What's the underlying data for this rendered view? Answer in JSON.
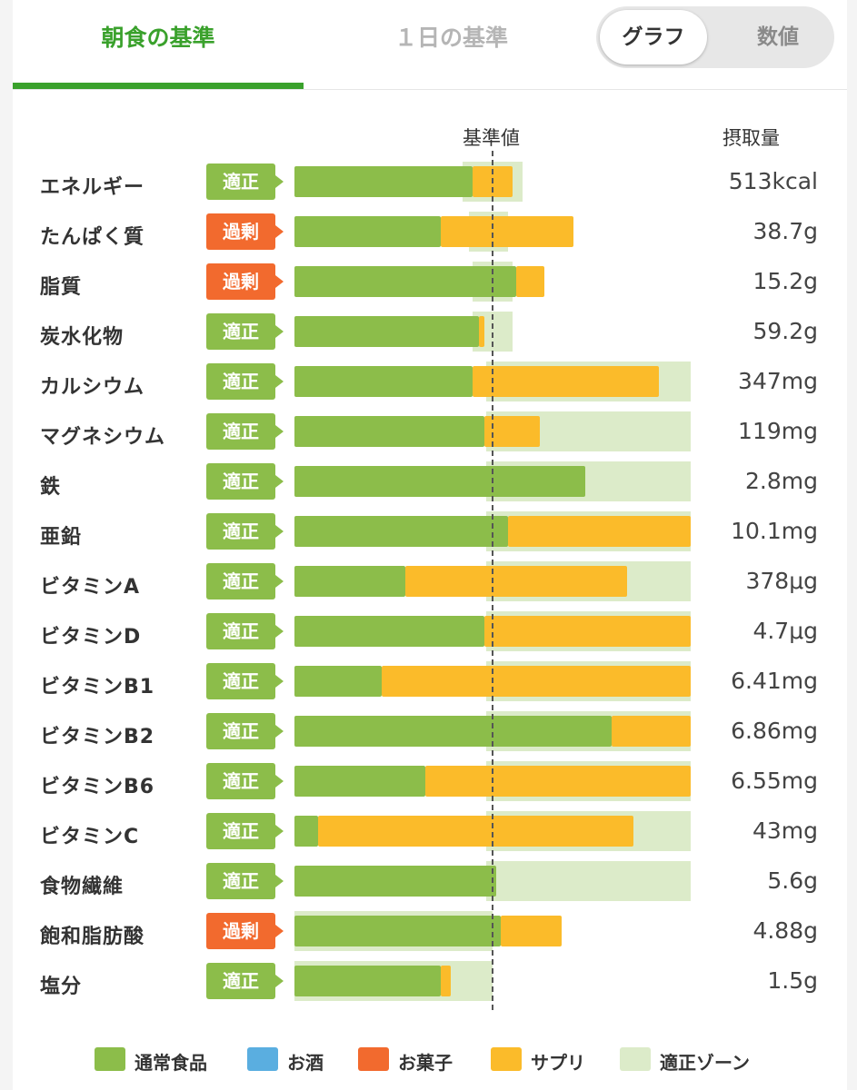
{
  "tabs": {
    "breakfast": "朝食の基準",
    "day": "１日の基準"
  },
  "toggle": {
    "graph": "グラフ",
    "numbers": "数値"
  },
  "headers": {
    "reference": "基準値",
    "intake": "摂取量"
  },
  "colors": {
    "food": "#8cbd4a",
    "alcohol": "#5aaee0",
    "snack": "#f26a2e",
    "supplement": "#fbbb2a",
    "zone": "#dcebc9",
    "ok": "#8cbd4a",
    "excess": "#f26a2e"
  },
  "chart_data": {
    "type": "bar",
    "reference_label": "基準値",
    "scale_note": "values as fraction of reference (1.0 = 基準値)",
    "rows": [
      {
        "name": "エネルギー",
        "status": "適正",
        "status_type": "ok",
        "value": "513kcal",
        "food": 0.9,
        "supplement": 0.2,
        "zone": [
          0.85,
          1.15
        ]
      },
      {
        "name": "たんぱく質",
        "status": "過剰",
        "status_type": "excess",
        "value": "38.7g",
        "food": 0.74,
        "supplement": 0.67,
        "zone": [
          0.88,
          1.08
        ]
      },
      {
        "name": "脂質",
        "status": "過剰",
        "status_type": "excess",
        "value": "15.2g",
        "food": 1.12,
        "supplement": 0.14,
        "zone": [
          0.9,
          1.1
        ]
      },
      {
        "name": "炭水化物",
        "status": "適正",
        "status_type": "ok",
        "value": "59.2g",
        "food": 0.93,
        "supplement": 0.03,
        "zone": [
          0.9,
          1.1
        ]
      },
      {
        "name": "カルシウム",
        "status": "適正",
        "status_type": "ok",
        "value": "347mg",
        "food": 0.9,
        "supplement": 0.94,
        "zone": [
          0.97,
          2.0
        ]
      },
      {
        "name": "マグネシウム",
        "status": "適正",
        "status_type": "ok",
        "value": "119mg",
        "food": 0.96,
        "supplement": 0.28,
        "zone": [
          0.97,
          2.0
        ]
      },
      {
        "name": "鉄",
        "status": "適正",
        "status_type": "ok",
        "value": "2.8mg",
        "food": 1.47,
        "supplement": 0.0,
        "zone": [
          0.97,
          2.0
        ]
      },
      {
        "name": "亜鉛",
        "status": "適正",
        "status_type": "ok",
        "value": "10.1mg",
        "food": 1.08,
        "supplement": 0.92,
        "zone": [
          0.97,
          2.0
        ]
      },
      {
        "name": "ビタミンA",
        "status": "適正",
        "status_type": "ok",
        "value": "378μg",
        "food": 0.56,
        "supplement": 1.12,
        "zone": [
          0.97,
          2.0
        ]
      },
      {
        "name": "ビタミンD",
        "status": "適正",
        "status_type": "ok",
        "value": "4.7μg",
        "food": 0.96,
        "supplement": 1.04,
        "zone": [
          0.97,
          2.0
        ]
      },
      {
        "name": "ビタミンB1",
        "status": "適正",
        "status_type": "ok",
        "value": "6.41mg",
        "food": 0.44,
        "supplement": 1.56,
        "zone": [
          0.97,
          2.0
        ]
      },
      {
        "name": "ビタミンB2",
        "status": "適正",
        "status_type": "ok",
        "value": "6.86mg",
        "food": 1.6,
        "supplement": 0.4,
        "zone": [
          0.97,
          2.0
        ]
      },
      {
        "name": "ビタミンB6",
        "status": "適正",
        "status_type": "ok",
        "value": "6.55mg",
        "food": 0.66,
        "supplement": 1.34,
        "zone": [
          0.97,
          2.0
        ]
      },
      {
        "name": "ビタミンC",
        "status": "適正",
        "status_type": "ok",
        "value": "43mg",
        "food": 0.12,
        "supplement": 1.59,
        "zone": [
          0.97,
          2.0
        ]
      },
      {
        "name": "食物繊維",
        "status": "適正",
        "status_type": "ok",
        "value": "5.6g",
        "food": 1.02,
        "supplement": 0.0,
        "zone": [
          0.97,
          2.0
        ]
      },
      {
        "name": "飽和脂肪酸",
        "status": "過剰",
        "status_type": "excess",
        "value": "4.88g",
        "food": 1.04,
        "supplement": 0.31,
        "zone": [
          0.0,
          1.0
        ]
      },
      {
        "name": "塩分",
        "status": "適正",
        "status_type": "ok",
        "value": "1.5g",
        "food": 0.74,
        "supplement": 0.05,
        "zone": [
          0.0,
          1.0
        ]
      }
    ],
    "legend": [
      {
        "label": "通常食品",
        "color": "#8cbd4a"
      },
      {
        "label": "お酒",
        "color": "#5aaee0"
      },
      {
        "label": "お菓子",
        "color": "#f26a2e"
      },
      {
        "label": "サプリ",
        "color": "#fbbb2a"
      },
      {
        "label": "適正ゾーン",
        "color": "#dcebc9"
      }
    ]
  }
}
